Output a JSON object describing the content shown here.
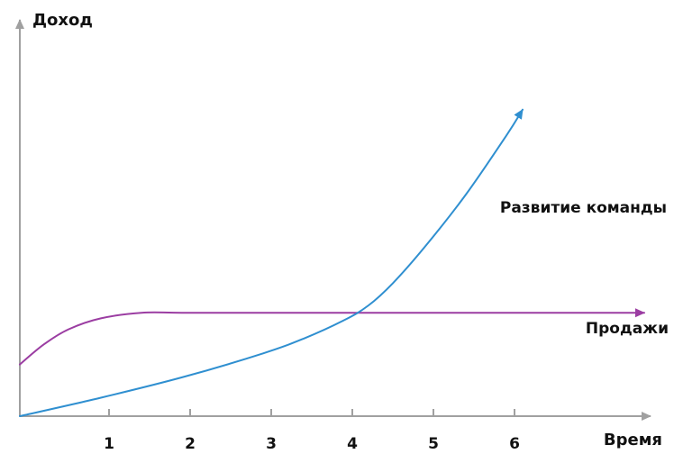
{
  "chart_data": {
    "type": "line",
    "title": "",
    "xlabel": "Время",
    "ylabel": "Доход",
    "x_ticks": [
      1,
      2,
      3,
      4,
      5,
      6
    ],
    "xlim": [
      0,
      7.85
    ],
    "ylim": [
      0,
      10
    ],
    "grid": false,
    "legend": "inline labels",
    "series": [
      {
        "name": "Развитие команды",
        "color": "#2f8fd0",
        "arrow_end": true,
        "points": [
          [
            0,
            0
          ],
          [
            1,
            0.5
          ],
          [
            2,
            1.05
          ],
          [
            3,
            1.7
          ],
          [
            3.5,
            2.1
          ],
          [
            4,
            2.6
          ],
          [
            4.3,
            3.0
          ],
          [
            4.6,
            3.6
          ],
          [
            5,
            4.6
          ],
          [
            5.5,
            6.0
          ],
          [
            6,
            7.6
          ],
          [
            6.2,
            8.3
          ]
        ]
      },
      {
        "name": "Продажи",
        "color": "#9b3da2",
        "arrow_end": true,
        "points": [
          [
            0,
            1.4
          ],
          [
            0.3,
            1.95
          ],
          [
            0.6,
            2.35
          ],
          [
            1,
            2.65
          ],
          [
            1.5,
            2.8
          ],
          [
            2,
            2.8
          ],
          [
            3,
            2.8
          ],
          [
            4,
            2.8
          ],
          [
            5,
            2.8
          ],
          [
            6,
            2.8
          ],
          [
            7,
            2.8
          ],
          [
            7.7,
            2.8
          ]
        ]
      }
    ],
    "axis_color": "#a0a0a0"
  }
}
